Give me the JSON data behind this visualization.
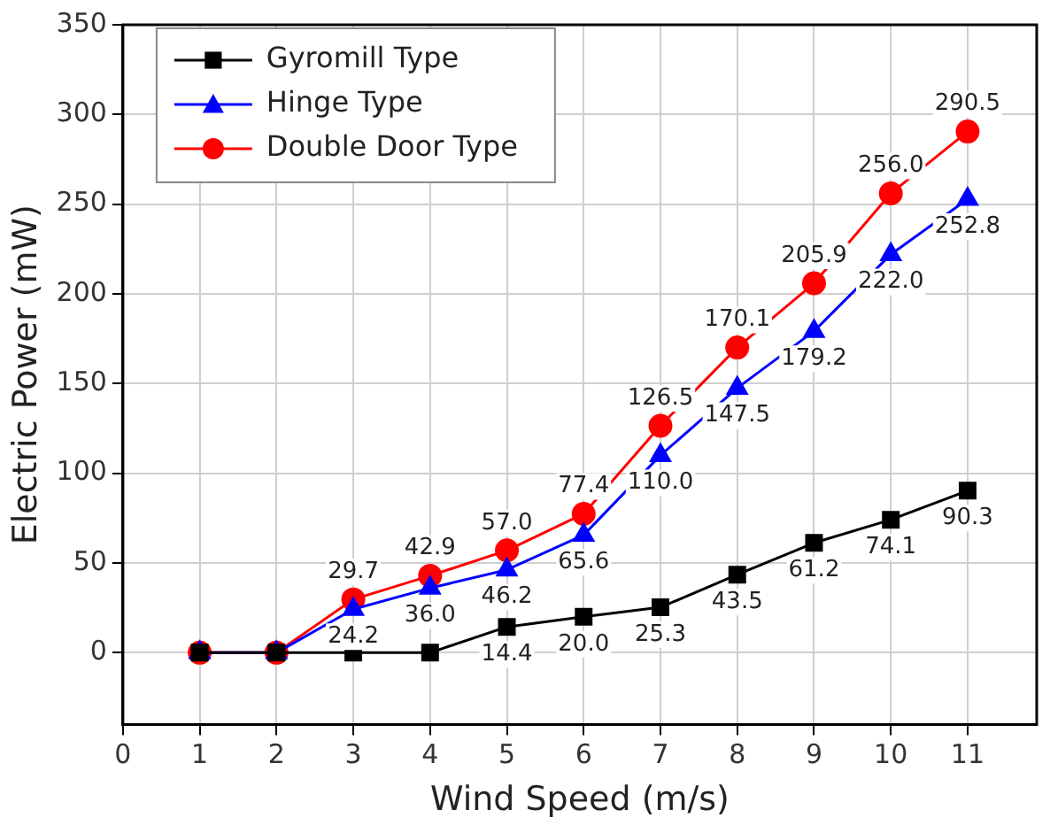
{
  "chart_data": {
    "type": "line",
    "xlabel": "Wind Speed (m/s)",
    "ylabel": "Electric Power (mW)",
    "x": [
      1,
      2,
      3,
      4,
      5,
      6,
      7,
      8,
      9,
      10,
      11
    ],
    "series": [
      {
        "name": "Gyromill Type",
        "color": "#000000",
        "marker": "square",
        "values": [
          0,
          0,
          0,
          0,
          14.4,
          20.0,
          25.3,
          43.5,
          61.2,
          74.1,
          90.3
        ],
        "value_labels": [
          null,
          null,
          null,
          null,
          "14.4",
          "20.0",
          "25.3",
          "43.5",
          "61.2",
          "74.1",
          "90.3"
        ]
      },
      {
        "name": "Hinge Type",
        "color": "#0000ff",
        "marker": "triangle",
        "values": [
          0,
          0,
          24.2,
          36.0,
          46.2,
          65.6,
          110.0,
          147.5,
          179.2,
          222.0,
          252.8
        ],
        "value_labels": [
          null,
          null,
          "24.2",
          "36.0",
          "46.2",
          "65.6",
          "110.0",
          "147.5",
          "179.2",
          "222.0",
          "252.8"
        ]
      },
      {
        "name": "Double Door Type",
        "color": "#ff0000",
        "marker": "circle",
        "values": [
          0,
          0,
          29.7,
          42.9,
          57.0,
          77.4,
          126.5,
          170.1,
          205.9,
          256.0,
          290.5
        ],
        "value_labels": [
          null,
          null,
          "29.7",
          "42.9",
          "57.0",
          "77.4",
          "126.5",
          "170.1",
          "205.9",
          "256.0",
          "290.5"
        ]
      }
    ],
    "xlim": [
      0,
      11.9
    ],
    "xticks": [
      0,
      1,
      2,
      3,
      4,
      5,
      6,
      7,
      8,
      9,
      10,
      11
    ],
    "ylim": [
      -40,
      350
    ],
    "yticks": [
      0,
      50,
      100,
      150,
      200,
      250,
      300,
      350
    ],
    "grid": true,
    "legend": "top left",
    "line_style": "solid"
  }
}
